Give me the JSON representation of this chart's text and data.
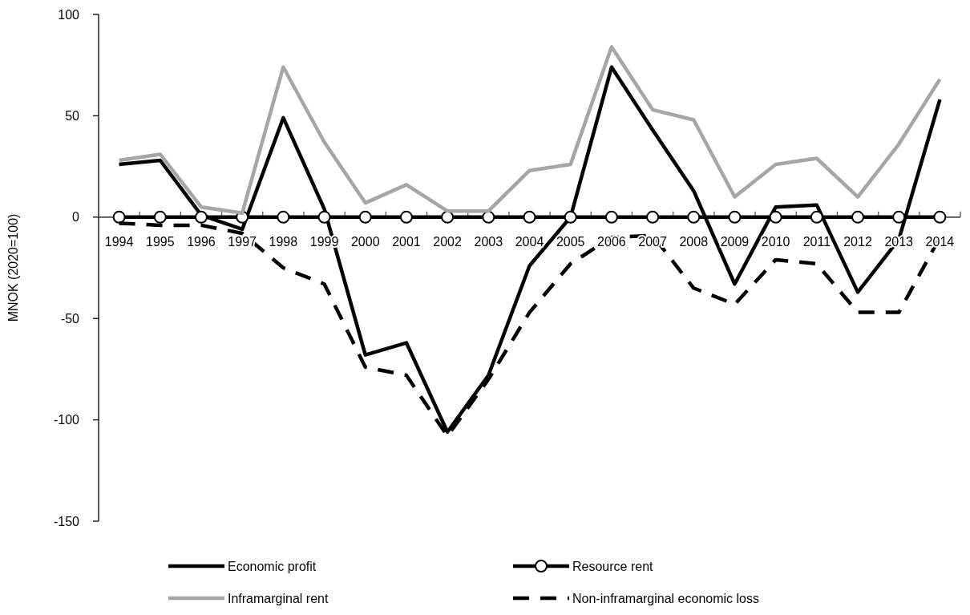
{
  "chart_data": {
    "type": "line",
    "ylabel": "MNOK (2020=100)",
    "categories": [
      "1994",
      "1995",
      "1996",
      "1997",
      "1998",
      "1999",
      "2000",
      "2001",
      "2002",
      "2003",
      "2004",
      "2005",
      "2006",
      "2007",
      "2008",
      "2009",
      "2010",
      "2011",
      "2012",
      "2013",
      "2014"
    ],
    "ylim": [
      -150,
      100
    ],
    "yticks": [
      -150,
      -100,
      -50,
      0,
      50,
      100
    ],
    "grid": false,
    "legend": "bottom",
    "series": [
      {
        "name": "Economic profit",
        "color": "#000000",
        "marker": "none",
        "line_style": "solid",
        "values": [
          26,
          28,
          1,
          -6,
          49,
          4,
          -68,
          -62,
          -106,
          -78,
          -24,
          0,
          74,
          43,
          13,
          -33,
          5,
          6,
          -37,
          -11,
          58
        ]
      },
      {
        "name": "Resource rent",
        "color": "#000000",
        "marker": "circle",
        "line_style": "solid",
        "values": [
          0,
          0,
          0,
          0,
          0,
          0,
          0,
          0,
          0,
          0,
          0,
          0,
          0,
          0,
          0,
          0,
          0,
          0,
          0,
          0,
          0
        ]
      },
      {
        "name": "Inframarginal rent",
        "color": "#a6a6a6",
        "marker": "none",
        "line_style": "solid",
        "values": [
          28,
          31,
          5,
          2,
          74,
          37,
          7,
          16,
          3,
          3,
          23,
          26,
          84,
          53,
          48,
          10,
          26,
          29,
          10,
          36,
          68
        ]
      },
      {
        "name": "Non-inframarginal economic loss",
        "color": "#000000",
        "marker": "none",
        "line_style": "dashed",
        "values": [
          -3,
          -4,
          -4,
          -8,
          -25,
          -33,
          -74,
          -78,
          -108,
          -80,
          -47,
          -23,
          -10,
          -9,
          -35,
          -43,
          -21,
          -23,
          -47,
          -47,
          -10
        ]
      }
    ]
  }
}
